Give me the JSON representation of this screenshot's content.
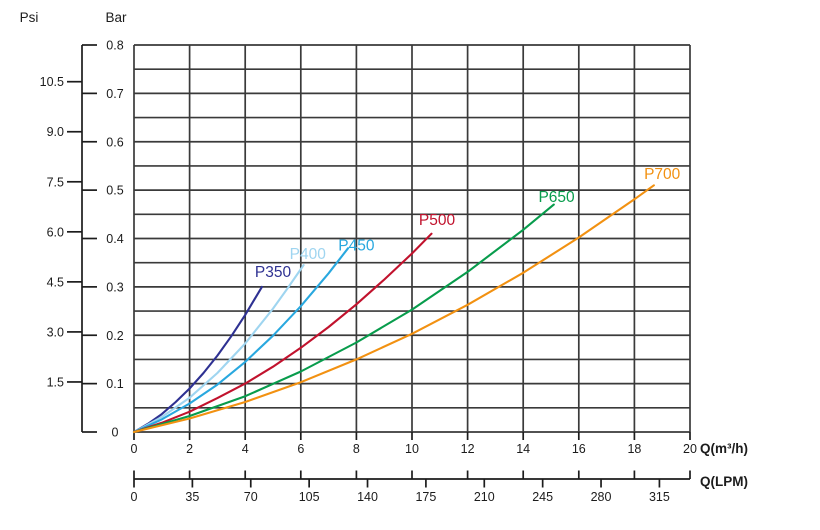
{
  "chart_data": {
    "type": "line",
    "x_axis": {
      "label": "Q(m³/h)",
      "range": [
        0,
        20
      ],
      "ticks": [
        0,
        2,
        4,
        6,
        8,
        10,
        12,
        14,
        16,
        18,
        20
      ],
      "tick_labels": [
        "0",
        "2",
        "4",
        "6",
        "8",
        "10",
        "12",
        "14",
        "16",
        "18",
        "20"
      ]
    },
    "x_axis_secondary": {
      "label": "Q(LPM)",
      "ticks": [
        0,
        35,
        70,
        105,
        140,
        175,
        210,
        245,
        280,
        315
      ],
      "tick_labels": [
        "0",
        "35",
        "70",
        "105",
        "140",
        "175",
        "210",
        "245",
        "280",
        "315"
      ],
      "lpm_per_m3h": 16.6667
    },
    "y_axis_bar": {
      "label": "Bar",
      "range": [
        0,
        0.8
      ],
      "major_ticks": [
        0.8,
        0.7,
        0.6,
        0.5,
        0.4,
        0.3,
        0.2,
        0.1,
        0
      ],
      "tick_labels": [
        "0.8",
        "0.7",
        "0.6",
        "0.5",
        "0.4",
        "0.3",
        "0.2",
        "0.1",
        "0"
      ],
      "minor_step": 0.05
    },
    "y_axis_psi": {
      "label": "Psi",
      "ticks": [
        10.5,
        9.0,
        7.5,
        6.0,
        4.5,
        3.0,
        1.5
      ],
      "tick_labels": [
        "10.5",
        "9.0",
        "7.5",
        "6.0",
        "4.5",
        "3.0",
        "1.5"
      ],
      "psi_per_bar": 14.5
    },
    "grid": {
      "show": true,
      "color": "#3a3a3a"
    },
    "axis_color": "#1c1c1c",
    "legend_position": "on-curve-labels",
    "series": [
      {
        "name": "P350",
        "color": "#2e3192",
        "label_at": [
          5.0,
          0.331
        ],
        "points": [
          [
            0,
            0
          ],
          [
            0.5,
            0.017
          ],
          [
            1,
            0.037
          ],
          [
            1.5,
            0.062
          ],
          [
            2,
            0.09
          ],
          [
            2.5,
            0.122
          ],
          [
            3,
            0.158
          ],
          [
            3.5,
            0.198
          ],
          [
            4,
            0.242
          ],
          [
            4.6,
            0.3
          ]
        ]
      },
      {
        "name": "P400",
        "color": "#9fd5f0",
        "label_at": [
          6.25,
          0.368
        ],
        "points": [
          [
            0,
            0
          ],
          [
            1,
            0.031
          ],
          [
            2,
            0.071
          ],
          [
            3,
            0.122
          ],
          [
            4,
            0.183
          ],
          [
            5,
            0.255
          ],
          [
            5.5,
            0.295
          ],
          [
            6.1,
            0.345
          ]
        ]
      },
      {
        "name": "P450",
        "color": "#29a8df",
        "label_at": [
          8.0,
          0.386
        ],
        "points": [
          [
            0,
            0
          ],
          [
            1,
            0.026
          ],
          [
            2,
            0.059
          ],
          [
            3,
            0.098
          ],
          [
            4,
            0.145
          ],
          [
            5,
            0.199
          ],
          [
            6,
            0.26
          ],
          [
            7,
            0.328
          ],
          [
            7.7,
            0.38
          ]
        ]
      },
      {
        "name": "P500",
        "color": "#c1122d",
        "label_at": [
          10.9,
          0.438
        ],
        "points": [
          [
            0,
            0
          ],
          [
            1,
            0.019
          ],
          [
            2,
            0.042
          ],
          [
            3,
            0.07
          ],
          [
            4,
            0.1
          ],
          [
            5,
            0.135
          ],
          [
            6,
            0.174
          ],
          [
            7,
            0.217
          ],
          [
            8,
            0.264
          ],
          [
            9,
            0.315
          ],
          [
            10,
            0.369
          ],
          [
            10.7,
            0.41
          ]
        ]
      },
      {
        "name": "P650",
        "color": "#089c4c",
        "label_at": [
          15.2,
          0.486
        ],
        "points": [
          [
            0,
            0
          ],
          [
            2,
            0.033
          ],
          [
            4,
            0.074
          ],
          [
            6,
            0.125
          ],
          [
            8,
            0.185
          ],
          [
            10,
            0.253
          ],
          [
            12,
            0.331
          ],
          [
            14,
            0.418
          ],
          [
            15.1,
            0.47
          ]
        ]
      },
      {
        "name": "P700",
        "color": "#f29111",
        "label_at": [
          19.0,
          0.533
        ],
        "points": [
          [
            0,
            0
          ],
          [
            2,
            0.028
          ],
          [
            4,
            0.062
          ],
          [
            6,
            0.103
          ],
          [
            8,
            0.15
          ],
          [
            10,
            0.203
          ],
          [
            12,
            0.263
          ],
          [
            14,
            0.329
          ],
          [
            16,
            0.402
          ],
          [
            18,
            0.481
          ],
          [
            18.7,
            0.51
          ]
        ]
      }
    ]
  }
}
